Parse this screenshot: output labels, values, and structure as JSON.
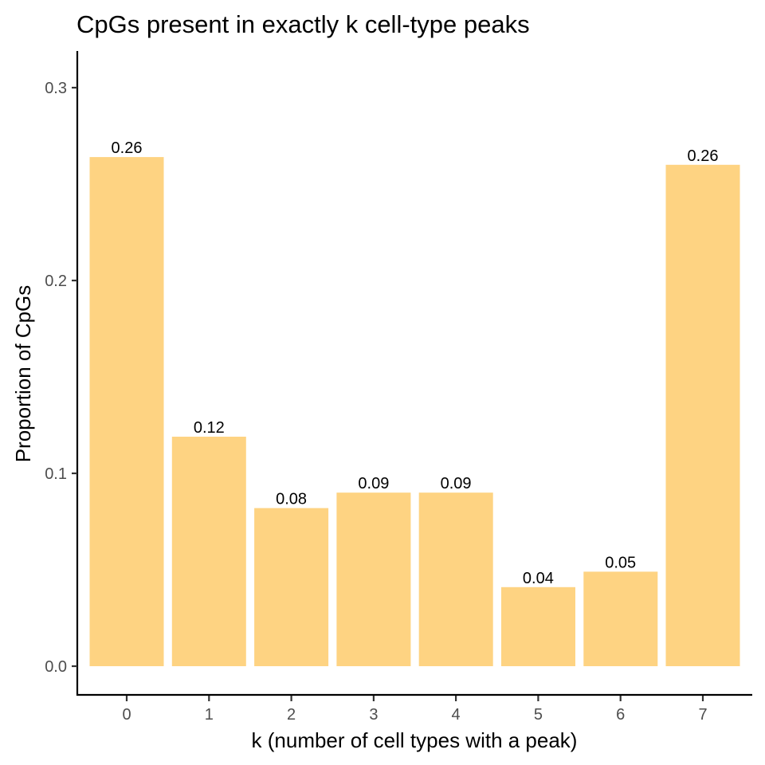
{
  "chart_data": {
    "type": "bar",
    "title": "CpGs present in exactly k cell-type peaks",
    "xlabel": "k (number of cell types with a peak)",
    "ylabel": "Proportion of CpGs",
    "categories": [
      "0",
      "1",
      "2",
      "3",
      "4",
      "5",
      "6",
      "7"
    ],
    "values": [
      0.264,
      0.119,
      0.082,
      0.09,
      0.09,
      0.041,
      0.049,
      0.26
    ],
    "data_labels": [
      "0.26",
      "0.12",
      "0.08",
      "0.09",
      "0.09",
      "0.04",
      "0.05",
      "0.26"
    ],
    "ylim": [
      -0.014,
      0.32
    ],
    "yticks": [
      0.0,
      0.1,
      0.2,
      0.3
    ],
    "ytick_labels": [
      "0.0",
      "0.1",
      "0.2",
      "0.3"
    ],
    "grid": false,
    "legend": "none",
    "bar_color": "#FED382"
  }
}
